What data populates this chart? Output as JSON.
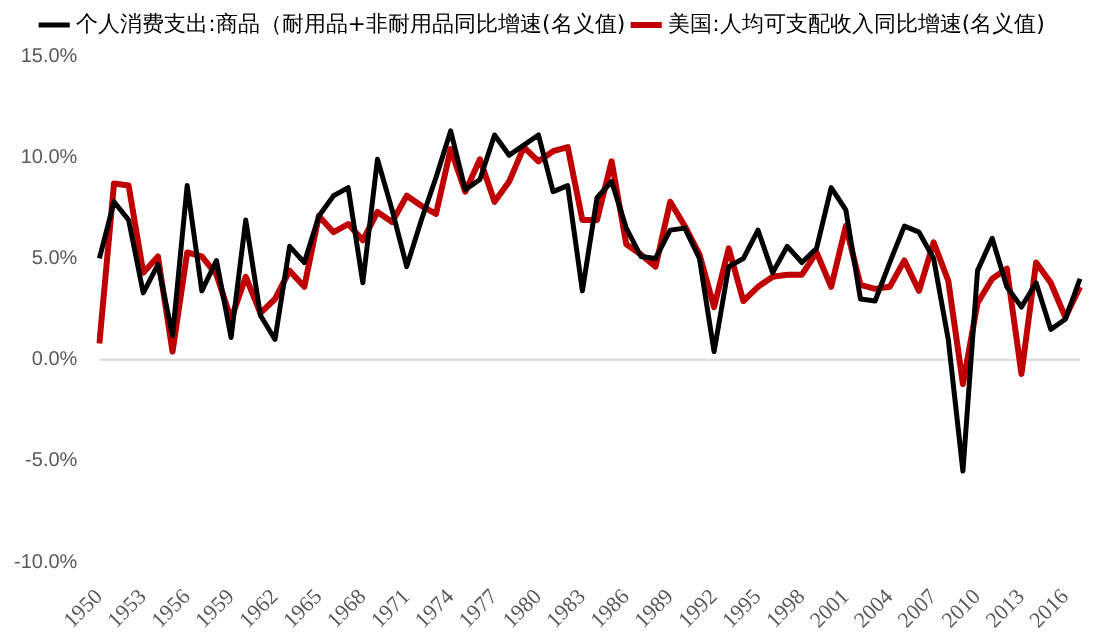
{
  "chart_data": {
    "type": "line",
    "categories": [
      "1950",
      null,
      null,
      "1953",
      null,
      null,
      "1956",
      null,
      null,
      "1959",
      null,
      null,
      "1962",
      null,
      null,
      "1965",
      null,
      null,
      "1968",
      null,
      null,
      "1971",
      null,
      null,
      "1974",
      null,
      null,
      "1977",
      null,
      null,
      "1980",
      null,
      null,
      "1983",
      null,
      null,
      "1986",
      null,
      null,
      "1989",
      null,
      null,
      "1992",
      null,
      null,
      "1995",
      null,
      null,
      "1998",
      null,
      null,
      "2001",
      null,
      null,
      "2004",
      null,
      null,
      "2007",
      null,
      null,
      "2010",
      null,
      null,
      "2013",
      null,
      null,
      "2016",
      null
    ],
    "series": [
      {
        "name": "个人消费支出:商品（耐用品+非耐用品同比增速(名义值)",
        "color": "#000000",
        "values": [
          5.0,
          7.8,
          6.9,
          3.3,
          4.7,
          1.2,
          8.6,
          3.4,
          4.9,
          1.1,
          6.9,
          2.2,
          1.0,
          5.6,
          4.8,
          7.1,
          8.1,
          8.5,
          3.8,
          9.9,
          7.4,
          4.6,
          6.9,
          9.0,
          11.3,
          8.4,
          8.9,
          11.1,
          10.1,
          10.6,
          11.1,
          8.3,
          8.6,
          3.4,
          8.0,
          8.8,
          6.5,
          5.1,
          5.0,
          6.4,
          6.5,
          5.0,
          0.4,
          4.6,
          5.0,
          6.4,
          4.3,
          5.6,
          4.8,
          5.5,
          8.5,
          7.4,
          3.0,
          2.9,
          4.8,
          6.6,
          6.3,
          5.0,
          1.0,
          -5.5,
          4.4,
          6.0,
          3.6,
          2.6,
          3.8,
          1.5,
          2.0,
          4.0
        ]
      },
      {
        "name": "美国:人均可支配收入同比增速(名义值)",
        "color": "#c00000",
        "values": [
          0.8,
          8.7,
          8.6,
          4.3,
          5.1,
          0.4,
          5.3,
          5.1,
          4.2,
          2.0,
          4.1,
          2.3,
          3.0,
          4.4,
          3.6,
          7.1,
          6.3,
          6.7,
          5.9,
          7.3,
          6.8,
          8.1,
          7.6,
          7.2,
          10.4,
          8.3,
          9.9,
          7.8,
          8.8,
          10.5,
          9.8,
          10.3,
          10.5,
          6.9,
          6.9,
          9.8,
          5.7,
          5.2,
          4.6,
          7.8,
          6.6,
          5.2,
          2.6,
          5.5,
          2.9,
          3.6,
          4.1,
          4.2,
          4.2,
          5.3,
          3.6,
          6.6,
          3.7,
          3.5,
          3.6,
          4.9,
          3.4,
          5.8,
          3.9,
          -1.2,
          2.8,
          4.0,
          4.5,
          -0.7,
          4.8,
          3.8,
          2.1,
          3.6
        ]
      }
    ],
    "ylim": [
      -10,
      15
    ],
    "yticks": [
      {
        "value": -10,
        "label": "-10.0%"
      },
      {
        "value": -5,
        "label": "-5.0%"
      },
      {
        "value": 0,
        "label": "0.0%"
      },
      {
        "value": 5,
        "label": "5.0%"
      },
      {
        "value": 10,
        "label": "10.0%"
      },
      {
        "value": 15,
        "label": "15.0%"
      }
    ],
    "ref_lines": [
      {
        "axis": "y",
        "value": 0,
        "color": "#d9d9d9"
      }
    ],
    "grid": false,
    "legend": "top",
    "marker": "none",
    "line_style": "solid"
  }
}
